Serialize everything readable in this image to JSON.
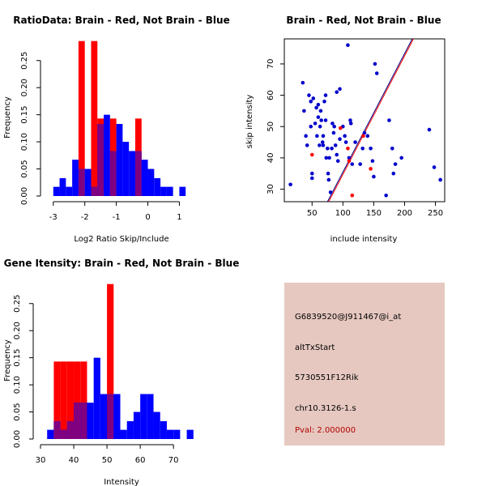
{
  "chart_data": [
    {
      "id": "ratio",
      "type": "bar",
      "title": "RatioData: Brain - Red, Not Brain - Blue",
      "xlabel": "Log2 Ratio Skip/Include",
      "ylabel": "Frequency",
      "xlim": [
        -3.2,
        1.4
      ],
      "ylim": [
        0,
        0.29
      ],
      "xticks": [
        -3,
        -2,
        -1,
        0,
        1
      ],
      "xtick_labels": [
        "-3",
        "-2",
        "-1",
        "0",
        "1"
      ],
      "yticks": [
        0,
        0.05,
        0.1,
        0.15,
        0.2,
        0.25
      ],
      "ytick_labels": [
        "0.00",
        "0.05",
        "0.10",
        "0.15",
        "0.20",
        "0.25"
      ],
      "binwidth": 0.2,
      "series": [
        {
          "name": "Brain",
          "color": "#ff0000",
          "bins": [
            [
              -2.2,
              0.286
            ],
            [
              -1.8,
              0.286
            ],
            [
              -1.6,
              0.143
            ],
            [
              -1.2,
              0.143
            ],
            [
              -0.4,
              0.143
            ]
          ]
        },
        {
          "name": "Not Brain",
          "color": "#0000ff",
          "bins": [
            [
              -3.0,
              0.017
            ],
            [
              -2.8,
              0.033
            ],
            [
              -2.6,
              0.017
            ],
            [
              -2.4,
              0.067
            ],
            [
              -2.2,
              0.05
            ],
            [
              -2.0,
              0.05
            ],
            [
              -1.8,
              0.017
            ],
            [
              -1.6,
              0.133
            ],
            [
              -1.4,
              0.15
            ],
            [
              -1.2,
              0.083
            ],
            [
              -1.0,
              0.133
            ],
            [
              -0.8,
              0.1
            ],
            [
              -0.6,
              0.083
            ],
            [
              -0.4,
              0.083
            ],
            [
              -0.2,
              0.067
            ],
            [
              0.0,
              0.05
            ],
            [
              0.2,
              0.033
            ],
            [
              0.4,
              0.017
            ],
            [
              0.6,
              0.017
            ],
            [
              1.0,
              0.017
            ]
          ]
        }
      ],
      "overlap_color": "#800080"
    },
    {
      "id": "scatter",
      "type": "scatter",
      "title": "Brain - Red, Not Brain - Blue",
      "xlabel": "include intensity",
      "ylabel": "skip intensity",
      "xlim": [
        5,
        265
      ],
      "ylim": [
        26,
        78
      ],
      "xticks": [
        50,
        100,
        150,
        200,
        250
      ],
      "xtick_labels": [
        "50",
        "100",
        "150",
        "200",
        "250"
      ],
      "yticks": [
        30,
        40,
        50,
        60,
        70
      ],
      "ytick_labels": [
        "30",
        "40",
        "50",
        "60",
        "70"
      ],
      "series": [
        {
          "name": "Not Brain",
          "color": "#0000cc",
          "points": [
            [
              15,
              31.5
            ],
            [
              35,
              64
            ],
            [
              37,
              55
            ],
            [
              40,
              47
            ],
            [
              42,
              44
            ],
            [
              45,
              60
            ],
            [
              48,
              50
            ],
            [
              48,
              58
            ],
            [
              50,
              35
            ],
            [
              50,
              33.5
            ],
            [
              52,
              59
            ],
            [
              55,
              51
            ],
            [
              57,
              56
            ],
            [
              58,
              47
            ],
            [
              60,
              57
            ],
            [
              60,
              53
            ],
            [
              62,
              44
            ],
            [
              63,
              50
            ],
            [
              64,
              55
            ],
            [
              65,
              52
            ],
            [
              67,
              45
            ],
            [
              68,
              47
            ],
            [
              68,
              44
            ],
            [
              70,
              58
            ],
            [
              72,
              60
            ],
            [
              72,
              52
            ],
            [
              73,
              40
            ],
            [
              75,
              43
            ],
            [
              76,
              35
            ],
            [
              77,
              33
            ],
            [
              78,
              40
            ],
            [
              80,
              29
            ],
            [
              82,
              43
            ],
            [
              83,
              51
            ],
            [
              85,
              48
            ],
            [
              86,
              50
            ],
            [
              88,
              44
            ],
            [
              90,
              61
            ],
            [
              90,
              41
            ],
            [
              92,
              39
            ],
            [
              95,
              62
            ],
            [
              95,
              46
            ],
            [
              100,
              50
            ],
            [
              103,
              47
            ],
            [
              105,
              45
            ],
            [
              108,
              76
            ],
            [
              110,
              40
            ],
            [
              112,
              52
            ],
            [
              113,
              51
            ],
            [
              115,
              38
            ],
            [
              120,
              45
            ],
            [
              128,
              38
            ],
            [
              132,
              43
            ],
            [
              135,
              48
            ],
            [
              140,
              47
            ],
            [
              145,
              43
            ],
            [
              148,
              39
            ],
            [
              150,
              34
            ],
            [
              152,
              70
            ],
            [
              155,
              67
            ],
            [
              170,
              28
            ],
            [
              175,
              52
            ],
            [
              180,
              43
            ],
            [
              182,
              35
            ],
            [
              185,
              38
            ],
            [
              195,
              40
            ],
            [
              240,
              49
            ],
            [
              248,
              37
            ],
            [
              258,
              33
            ]
          ]
        },
        {
          "name": "Brain",
          "color": "#ff0000",
          "points": [
            [
              50,
              41
            ],
            [
              96,
              49.5
            ],
            [
              108,
              43
            ],
            [
              110,
              39
            ],
            [
              115,
              28
            ],
            [
              133,
              47
            ],
            [
              145,
              36.5
            ]
          ]
        }
      ],
      "lines": [
        {
          "name": "Not Brain fit",
          "color": "#000080",
          "x": [
            75,
            215
          ],
          "y": [
            26,
            79
          ]
        },
        {
          "name": "Brain fit",
          "color": "#ff0000",
          "x": [
            77,
            217
          ],
          "y": [
            26,
            79
          ]
        }
      ]
    },
    {
      "id": "intensity",
      "type": "bar",
      "title": "Gene Itensity: Brain - Red, Not Brain - Blue",
      "xlabel": "Intensity",
      "ylabel": "Frequency",
      "xlim": [
        30,
        78
      ],
      "ylim": [
        0,
        0.29
      ],
      "xticks": [
        30,
        40,
        50,
        60,
        70
      ],
      "xtick_labels": [
        "30",
        "40",
        "50",
        "60",
        "70"
      ],
      "yticks": [
        0,
        0.05,
        0.1,
        0.15,
        0.2,
        0.25
      ],
      "ytick_labels": [
        "0.00",
        "0.05",
        "0.10",
        "0.15",
        "0.20",
        "0.25"
      ],
      "binwidth": 2,
      "series": [
        {
          "name": "Brain",
          "color": "#ff0000",
          "bins": [
            [
              34,
              0.143
            ],
            [
              36,
              0.143
            ],
            [
              38,
              0.143
            ],
            [
              40,
              0.143
            ],
            [
              42,
              0.143
            ],
            [
              50,
              0.286
            ]
          ]
        },
        {
          "name": "Not Brain",
          "color": "#0000ff",
          "bins": [
            [
              32,
              0.017
            ],
            [
              34,
              0.033
            ],
            [
              36,
              0.017
            ],
            [
              38,
              0.033
            ],
            [
              40,
              0.067
            ],
            [
              42,
              0.067
            ],
            [
              44,
              0.067
            ],
            [
              46,
              0.15
            ],
            [
              48,
              0.083
            ],
            [
              50,
              0.083
            ],
            [
              52,
              0.083
            ],
            [
              54,
              0.017
            ],
            [
              56,
              0.033
            ],
            [
              58,
              0.05
            ],
            [
              60,
              0.083
            ],
            [
              62,
              0.083
            ],
            [
              64,
              0.05
            ],
            [
              66,
              0.033
            ],
            [
              68,
              0.017
            ],
            [
              70,
              0.017
            ],
            [
              74,
              0.017
            ]
          ]
        }
      ],
      "overlap_color": "#800080"
    }
  ],
  "info": {
    "probe": "G6839520@J911467@i_at",
    "event": "altTxStart",
    "gene": "5730551F12Rik",
    "locus": "chr10.3126-1.s",
    "pval": "Pval: 2.000000"
  },
  "colors": {
    "panel_bg": "#e6c8c0",
    "pval": "#b00000"
  }
}
